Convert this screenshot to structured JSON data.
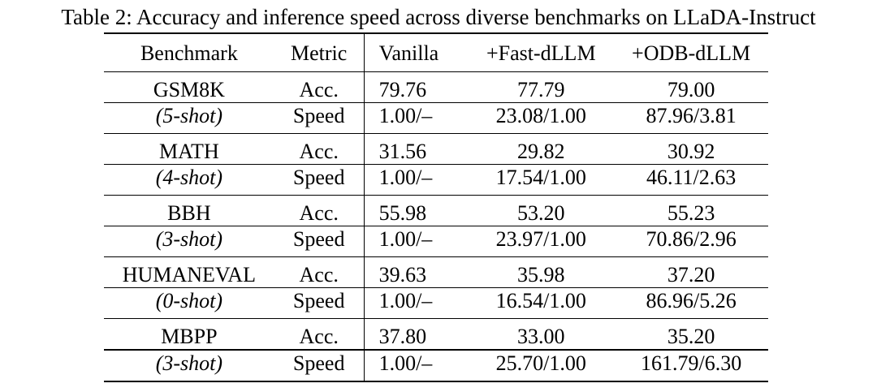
{
  "caption": "Table 2: Accuracy and inference speed across diverse benchmarks on LLaDA-Instruct",
  "headers": {
    "benchmark": "Benchmark",
    "metric": "Metric",
    "vanilla": "Vanilla",
    "fast": "+Fast-dLLM",
    "odb": "+ODB-dLLM"
  },
  "groups": [
    {
      "name": "GSM8K",
      "shot": "(5-shot)",
      "acc": {
        "label": "Acc.",
        "vanilla": "79.76",
        "fast": "77.79",
        "odb": "79.00"
      },
      "speed": {
        "label": "Speed",
        "vanilla": "1.00/–",
        "fast": "23.08/1.00",
        "odb": "87.96/3.81"
      }
    },
    {
      "name": "MATH",
      "shot": "(4-shot)",
      "acc": {
        "label": "Acc.",
        "vanilla": "31.56",
        "fast": "29.82",
        "odb": "30.92"
      },
      "speed": {
        "label": "Speed",
        "vanilla": "1.00/–",
        "fast": "17.54/1.00",
        "odb": "46.11/2.63"
      }
    },
    {
      "name": "BBH",
      "shot": "(3-shot)",
      "acc": {
        "label": "Acc.",
        "vanilla": "55.98",
        "fast": "53.20",
        "odb": "55.23"
      },
      "speed": {
        "label": "Speed",
        "vanilla": "1.00/–",
        "fast": "23.97/1.00",
        "odb": "70.86/2.96"
      }
    },
    {
      "name": "HUMANEVAL",
      "shot": "(0-shot)",
      "acc": {
        "label": "Acc.",
        "vanilla": "39.63",
        "fast": "35.98",
        "odb": "37.20"
      },
      "speed": {
        "label": "Speed",
        "vanilla": "1.00/–",
        "fast": "16.54/1.00",
        "odb": "86.96/5.26"
      }
    },
    {
      "name": "MBPP",
      "shot": "(3-shot)",
      "acc": {
        "label": "Acc.",
        "vanilla": "37.80",
        "fast": "33.00",
        "odb": "35.20"
      },
      "speed": {
        "label": "Speed",
        "vanilla": "1.00/–",
        "fast": "25.70/1.00",
        "odb": "161.79/6.30"
      }
    }
  ]
}
